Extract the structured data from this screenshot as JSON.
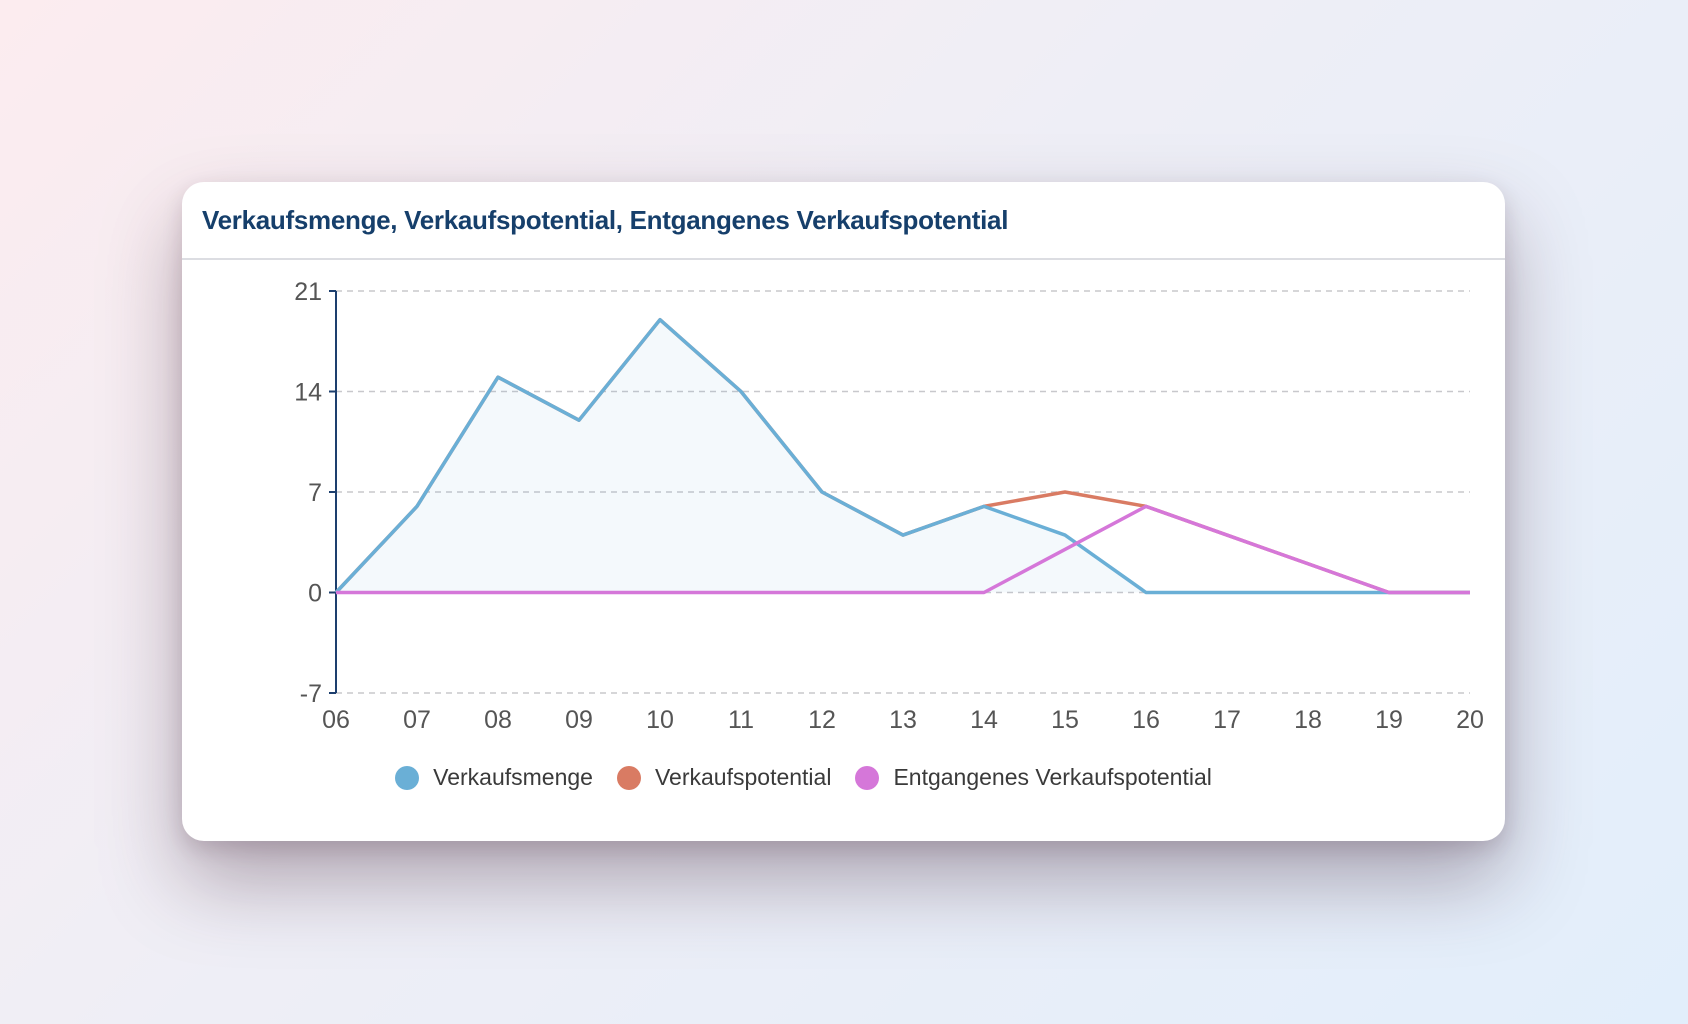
{
  "chart_data": {
    "type": "line",
    "title": "Verkaufsmenge, Verkaufspotential, Entgangenes Verkaufspotential",
    "categories": [
      "06",
      "07",
      "08",
      "09",
      "10",
      "11",
      "12",
      "13",
      "14",
      "15",
      "16",
      "17",
      "18",
      "19",
      "20"
    ],
    "ylim": [
      -7,
      21
    ],
    "yticks": [
      21,
      14,
      7,
      0,
      -7
    ],
    "grid": true,
    "legend": "bottom",
    "series": [
      {
        "name": "Verkaufsmenge",
        "color": "#6aafd6",
        "fill": true,
        "values": [
          0,
          6,
          15,
          12,
          19,
          14,
          7,
          4,
          6,
          4,
          0,
          0,
          0,
          0,
          0
        ]
      },
      {
        "name": "Verkaufspotential",
        "color": "#d97b63",
        "values": [
          0,
          6,
          15,
          12,
          19,
          14,
          7,
          4,
          6,
          7,
          6,
          4,
          2,
          0,
          0
        ]
      },
      {
        "name": "Entgangenes Verkaufspotential",
        "color": "#d577d9",
        "values": [
          0,
          0,
          0,
          0,
          0,
          0,
          0,
          0,
          0,
          3,
          6,
          4,
          2,
          0,
          0
        ]
      }
    ]
  }
}
